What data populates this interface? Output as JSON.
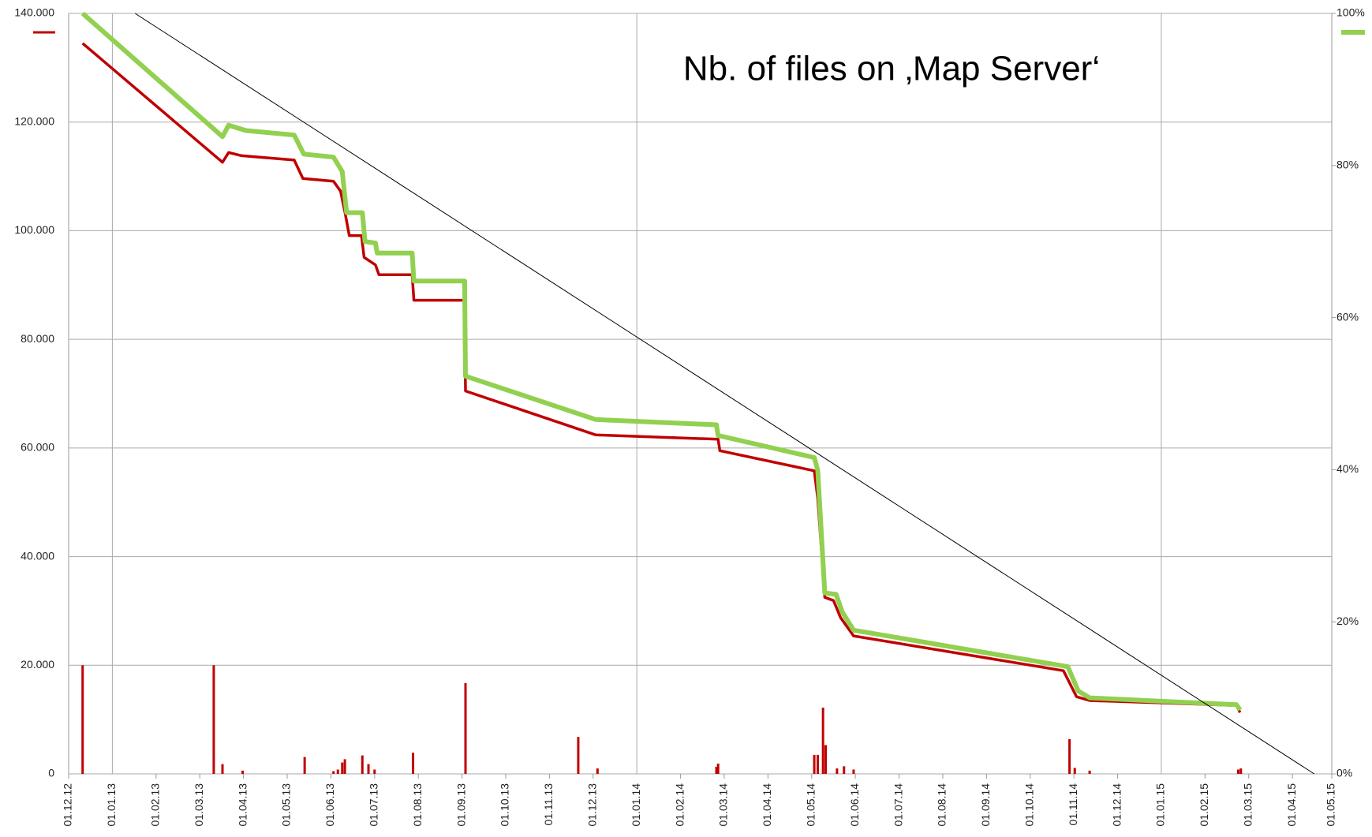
{
  "chart_data": {
    "type": "line",
    "title": "Nb. of files on ‚Map Server‘",
    "xlim": [
      0,
      28.9
    ],
    "xticks": [
      {
        "value": 0,
        "label": "01.12.12"
      },
      {
        "value": 1,
        "label": "01.01.13"
      },
      {
        "value": 2,
        "label": "01.02.13"
      },
      {
        "value": 3,
        "label": "01.03.13"
      },
      {
        "value": 4,
        "label": "01.04.13"
      },
      {
        "value": 5,
        "label": "01.05.13"
      },
      {
        "value": 6,
        "label": "01.06.13"
      },
      {
        "value": 7,
        "label": "01.07.13"
      },
      {
        "value": 8,
        "label": "01.08.13"
      },
      {
        "value": 9,
        "label": "01.09.13"
      },
      {
        "value": 10,
        "label": "01.10.13"
      },
      {
        "value": 11,
        "label": "01.11.13"
      },
      {
        "value": 12,
        "label": "01.12.13"
      },
      {
        "value": 13,
        "label": "01.01.14"
      },
      {
        "value": 14,
        "label": "01.02.14"
      },
      {
        "value": 15,
        "label": "01.03.14"
      },
      {
        "value": 16,
        "label": "01.04.14"
      },
      {
        "value": 17,
        "label": "01.05.14"
      },
      {
        "value": 18,
        "label": "01.06.14"
      },
      {
        "value": 19,
        "label": "01.07.14"
      },
      {
        "value": 20,
        "label": "01.08.14"
      },
      {
        "value": 21,
        "label": "01.09.14"
      },
      {
        "value": 22,
        "label": "01.10.14"
      },
      {
        "value": 23,
        "label": "01.11.14"
      },
      {
        "value": 24,
        "label": "01.12.14"
      },
      {
        "value": 25,
        "label": "01.01.15"
      },
      {
        "value": 26,
        "label": "01.02.15"
      },
      {
        "value": 27,
        "label": "01.03.15"
      },
      {
        "value": 28,
        "label": "01.04.15"
      },
      {
        "value": 28.9,
        "label": "01.05.15"
      }
    ],
    "ylim": [
      0,
      140000
    ],
    "yticks": [
      0,
      {
        "value": 20000,
        "label": "20.000"
      },
      {
        "value": 40000,
        "label": "40.000"
      },
      {
        "value": 60000,
        "label": "60.000"
      },
      {
        "value": 80000,
        "label": "80.000"
      },
      {
        "value": 100000,
        "label": "100.000"
      },
      {
        "value": 120000,
        "label": "120.000"
      },
      {
        "value": 140000,
        "label": "140.000"
      }
    ],
    "y2lim": [
      0,
      100
    ],
    "y2ticks": [
      {
        "value": 0,
        "label": "0%"
      },
      {
        "value": 20,
        "label": "20%"
      },
      {
        "value": 40,
        "label": "40%"
      },
      {
        "value": 60,
        "label": "60%"
      },
      {
        "value": 80,
        "label": "80%"
      },
      {
        "value": 100,
        "label": "100%"
      }
    ],
    "grid": true,
    "series": [
      {
        "type": "line",
        "color": "#c00000",
        "axis": "y",
        "x": [
          0.32,
          3.52,
          3.66,
          3.96,
          5.16,
          5.36,
          6.06,
          6.22,
          6.32,
          6.42,
          6.7,
          6.76,
          7.02,
          7.1,
          7.86,
          7.9,
          9.06,
          9.08,
          12.06,
          14.86,
          14.9,
          17.06,
          17.14,
          17.3,
          17.5,
          17.66,
          17.96,
          22.76,
          23.06,
          23.36,
          26.72,
          26.8
        ],
        "values": [
          134500,
          112600,
          114400,
          113800,
          113000,
          109600,
          109100,
          107300,
          103500,
          99100,
          99100,
          95100,
          93700,
          91900,
          91900,
          87200,
          87200,
          70500,
          62400,
          61600,
          59500,
          55800,
          50700,
          32500,
          31900,
          28800,
          25400,
          19000,
          14200,
          13500,
          12600,
          11300
        ]
      },
      {
        "type": "line",
        "color": "#92d050",
        "axis": "y2",
        "x": [
          0.32,
          3.52,
          3.66,
          4.06,
          5.16,
          5.38,
          6.06,
          6.26,
          6.36,
          6.72,
          6.78,
          7.02,
          7.06,
          7.86,
          7.9,
          9.06,
          9.08,
          12.06,
          14.82,
          14.86,
          17.06,
          17.14,
          17.3,
          17.56,
          17.7,
          17.96,
          22.86,
          23.1,
          23.36,
          26.72,
          26.8
        ],
        "values": [
          100,
          83.8,
          85.3,
          84.6,
          84.0,
          81.5,
          81.1,
          79.2,
          73.8,
          73.8,
          70.0,
          69.8,
          68.5,
          68.5,
          64.8,
          64.8,
          52.3,
          46.6,
          45.9,
          44.5,
          41.6,
          39.9,
          23.8,
          23.6,
          21.3,
          18.9,
          14.1,
          10.9,
          10.0,
          9.1,
          8.4
        ]
      },
      {
        "type": "line",
        "color": "#000000",
        "axis": "y",
        "x": [
          1.52,
          28.5
        ],
        "values": [
          140000,
          0
        ]
      },
      {
        "type": "bar",
        "color": "#c00000",
        "axis": "y",
        "x": [
          0.32,
          3.32,
          3.52,
          3.98,
          5.4,
          6.06,
          6.16,
          6.26,
          6.32,
          6.72,
          6.86,
          7.0,
          7.88,
          9.08,
          11.66,
          12.1,
          14.82,
          14.86,
          17.06,
          17.14,
          17.26,
          17.32,
          17.58,
          17.74,
          17.96,
          22.9,
          23.02,
          23.36,
          26.76,
          26.82
        ],
        "values": [
          20000,
          20000,
          1800,
          600,
          3100,
          500,
          800,
          2100,
          2700,
          3400,
          1800,
          800,
          3900,
          16700,
          6800,
          1000,
          1300,
          1900,
          3500,
          3500,
          12200,
          5300,
          1000,
          1400,
          800,
          6400,
          1100,
          600,
          800,
          1000
        ]
      }
    ]
  }
}
